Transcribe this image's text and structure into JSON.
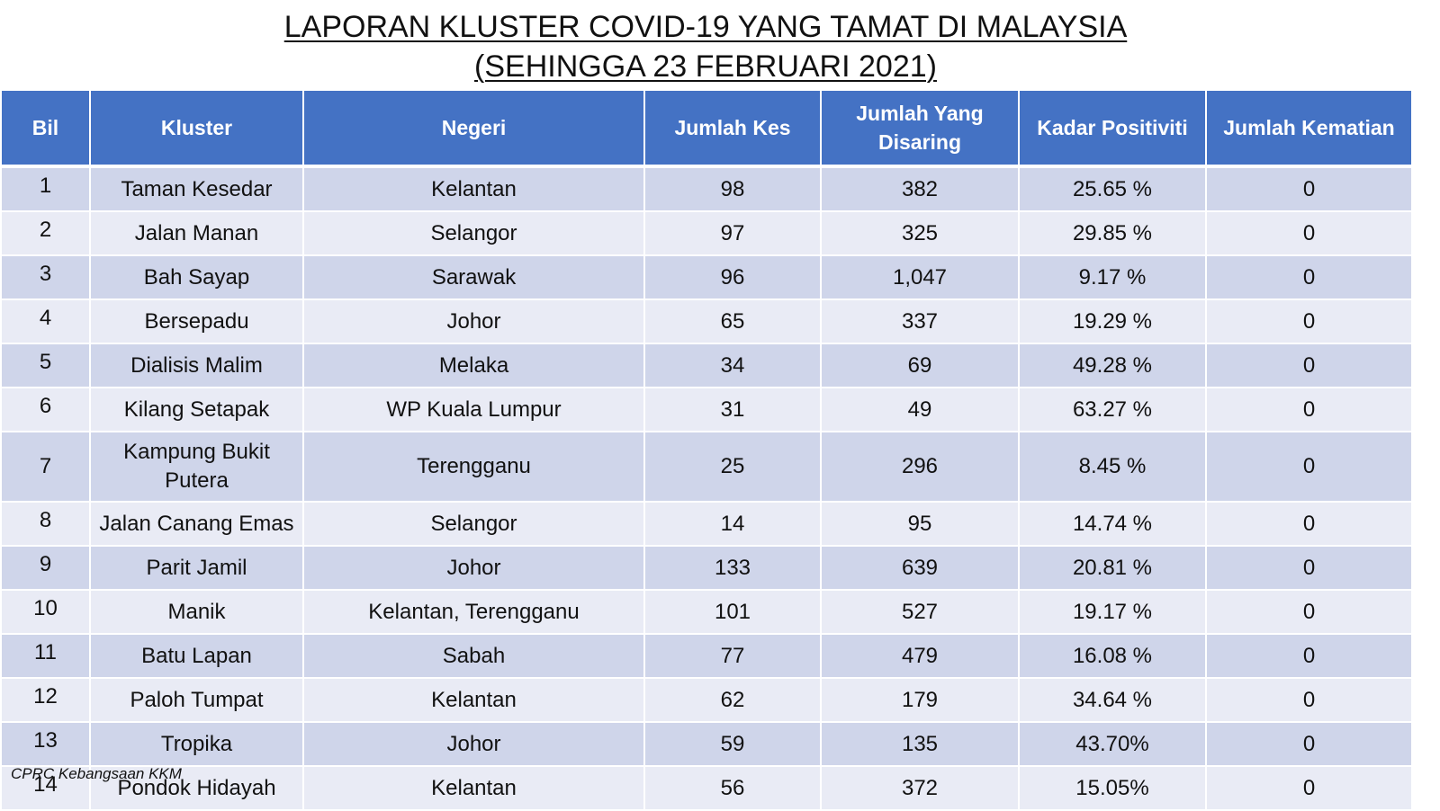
{
  "title": {
    "line1": "LAPORAN KLUSTER COVID-19 YANG TAMAT DI MALAYSIA",
    "line2": "(SEHINGGA  23 FEBRUARI 2021)"
  },
  "table": {
    "headers": [
      "Bil",
      "Kluster",
      "Negeri",
      "Jumlah Kes",
      "Jumlah Yang Disaring",
      "Kadar Positiviti",
      "Jumlah Kematian"
    ],
    "rows": [
      [
        "1",
        "Taman Kesedar",
        "Kelantan",
        "98",
        "382",
        "25.65 %",
        "0"
      ],
      [
        "2",
        "Jalan Manan",
        "Selangor",
        "97",
        "325",
        "29.85 %",
        "0"
      ],
      [
        "3",
        "Bah Sayap",
        "Sarawak",
        "96",
        "1,047",
        "9.17 %",
        "0"
      ],
      [
        "4",
        "Bersepadu",
        "Johor",
        "65",
        "337",
        "19.29 %",
        "0"
      ],
      [
        "5",
        "Dialisis Malim",
        "Melaka",
        "34",
        "69",
        "49.28 %",
        "0"
      ],
      [
        "6",
        "Kilang Setapak",
        "WP Kuala Lumpur",
        "31",
        "49",
        "63.27 %",
        "0"
      ],
      [
        "7",
        "Kampung Bukit Putera",
        "Terengganu",
        "25",
        "296",
        "8.45 %",
        "0"
      ],
      [
        "8",
        "Jalan Canang Emas",
        "Selangor",
        "14",
        "95",
        "14.74 %",
        "0"
      ],
      [
        "9",
        "Parit Jamil",
        "Johor",
        "133",
        "639",
        "20.81 %",
        "0"
      ],
      [
        "10",
        "Manik",
        "Kelantan, Terengganu",
        "101",
        "527",
        "19.17 %",
        "0"
      ],
      [
        "11",
        "Batu Lapan",
        "Sabah",
        "77",
        "479",
        "16.08 %",
        "0"
      ],
      [
        "12",
        "Paloh Tumpat",
        "Kelantan",
        "62",
        "179",
        "34.64 %",
        "0"
      ],
      [
        "13",
        "Tropika",
        "Johor",
        "59",
        "135",
        "43.70%",
        "0"
      ],
      [
        "14",
        "Pondok Hidayah",
        "Kelantan",
        "56",
        "372",
        "15.05%",
        "0"
      ]
    ]
  },
  "footer": {
    "source": "CPRC Kebangsaan KKM"
  },
  "colors": {
    "header_bg": "#4472c4",
    "row_odd": "#cfd5ea",
    "row_even": "#e9ebf5"
  }
}
